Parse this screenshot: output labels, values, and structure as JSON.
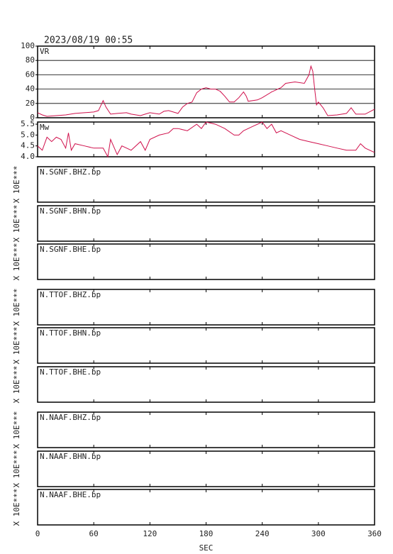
{
  "chart_data": [
    {
      "type": "line",
      "title": "2023/08/19 00:55",
      "label": "VR",
      "color": "#d0104c",
      "grid": true,
      "xlim": [
        0,
        360
      ],
      "ylim": [
        0,
        100
      ],
      "yticks": [
        0,
        20,
        40,
        60,
        80,
        100
      ],
      "x": [
        0,
        5,
        10,
        20,
        30,
        40,
        50,
        60,
        65,
        70,
        73,
        78,
        85,
        95,
        100,
        110,
        115,
        120,
        130,
        135,
        140,
        150,
        155,
        160,
        165,
        170,
        175,
        180,
        185,
        190,
        195,
        200,
        205,
        210,
        215,
        220,
        223,
        225,
        235,
        240,
        250,
        260,
        265,
        275,
        285,
        290,
        292,
        294,
        296,
        298,
        300,
        305,
        310,
        320,
        330,
        335,
        340,
        350,
        360
      ],
      "values": [
        7,
        4,
        2,
        3,
        4,
        6,
        7,
        8,
        10,
        24,
        15,
        5,
        6,
        7,
        5,
        3,
        5,
        7,
        5,
        9,
        10,
        6,
        15,
        20,
        22,
        35,
        40,
        42,
        40,
        40,
        37,
        30,
        22,
        22,
        28,
        36,
        30,
        23,
        25,
        28,
        36,
        42,
        48,
        50,
        48,
        60,
        72,
        65,
        40,
        18,
        22,
        14,
        3,
        4,
        6,
        14,
        5,
        5,
        12
      ]
    },
    {
      "type": "line",
      "label": "Mw",
      "color": "#d0104c",
      "grid": false,
      "xlim": [
        0,
        360
      ],
      "ylim": [
        4,
        5.6
      ],
      "yticks": [
        {
          "value": 4,
          "label": "4.0"
        },
        4.5,
        {
          "value": 5,
          "label": "5.0"
        },
        5.5
      ],
      "x": [
        0,
        5,
        10,
        15,
        20,
        25,
        30,
        33,
        36,
        40,
        50,
        60,
        70,
        75,
        78,
        85,
        90,
        100,
        110,
        115,
        120,
        130,
        140,
        145,
        150,
        160,
        170,
        175,
        180,
        190,
        200,
        210,
        215,
        220,
        225,
        230,
        240,
        245,
        250,
        255,
        260,
        270,
        280,
        290,
        300,
        310,
        320,
        330,
        340,
        345,
        350,
        360
      ],
      "values": [
        4.5,
        4.3,
        4.9,
        4.7,
        4.9,
        4.8,
        4.4,
        5.1,
        4.3,
        4.6,
        4.5,
        4.4,
        4.4,
        4.0,
        4.8,
        4.1,
        4.5,
        4.3,
        4.7,
        4.3,
        4.8,
        5.0,
        5.1,
        5.3,
        5.3,
        5.2,
        5.5,
        5.3,
        5.6,
        5.5,
        5.3,
        5.0,
        5.0,
        5.2,
        5.3,
        5.4,
        5.6,
        5.3,
        5.5,
        5.1,
        5.2,
        5.0,
        4.8,
        4.7,
        4.6,
        4.5,
        4.4,
        4.3,
        4.3,
        4.6,
        4.4,
        4.2
      ]
    },
    {
      "type": "trace",
      "label": "N.SGNF.BHZ.bp",
      "ylabel": "X 10E***"
    },
    {
      "type": "trace",
      "label": "N.SGNF.BHN.bp",
      "ylabel": "X 10E***"
    },
    {
      "type": "trace",
      "label": "N.SGNF.BHE.bp",
      "ylabel": "X 10E***"
    },
    {
      "type": "trace",
      "label": "N.TTOF.BHZ.bp",
      "ylabel": "X 10E***"
    },
    {
      "type": "trace",
      "label": "N.TTOF.BHN.bp",
      "ylabel": "X 10E***"
    },
    {
      "type": "trace",
      "label": "N.TTOF.BHE.bp",
      "ylabel": "X 10E***"
    },
    {
      "type": "trace",
      "label": "N.NAAF.BHZ.bp",
      "ylabel": "X 10E***"
    },
    {
      "type": "trace",
      "label": "N.NAAF.BHN.bp",
      "ylabel": "X 10E***"
    },
    {
      "type": "trace",
      "label": "N.NAAF.BHE.bp",
      "ylabel": "X 10E***",
      "xlabel": "SEC",
      "xlim": [
        0,
        360
      ],
      "xticks": [
        0,
        60,
        120,
        180,
        240,
        300,
        360
      ]
    }
  ]
}
